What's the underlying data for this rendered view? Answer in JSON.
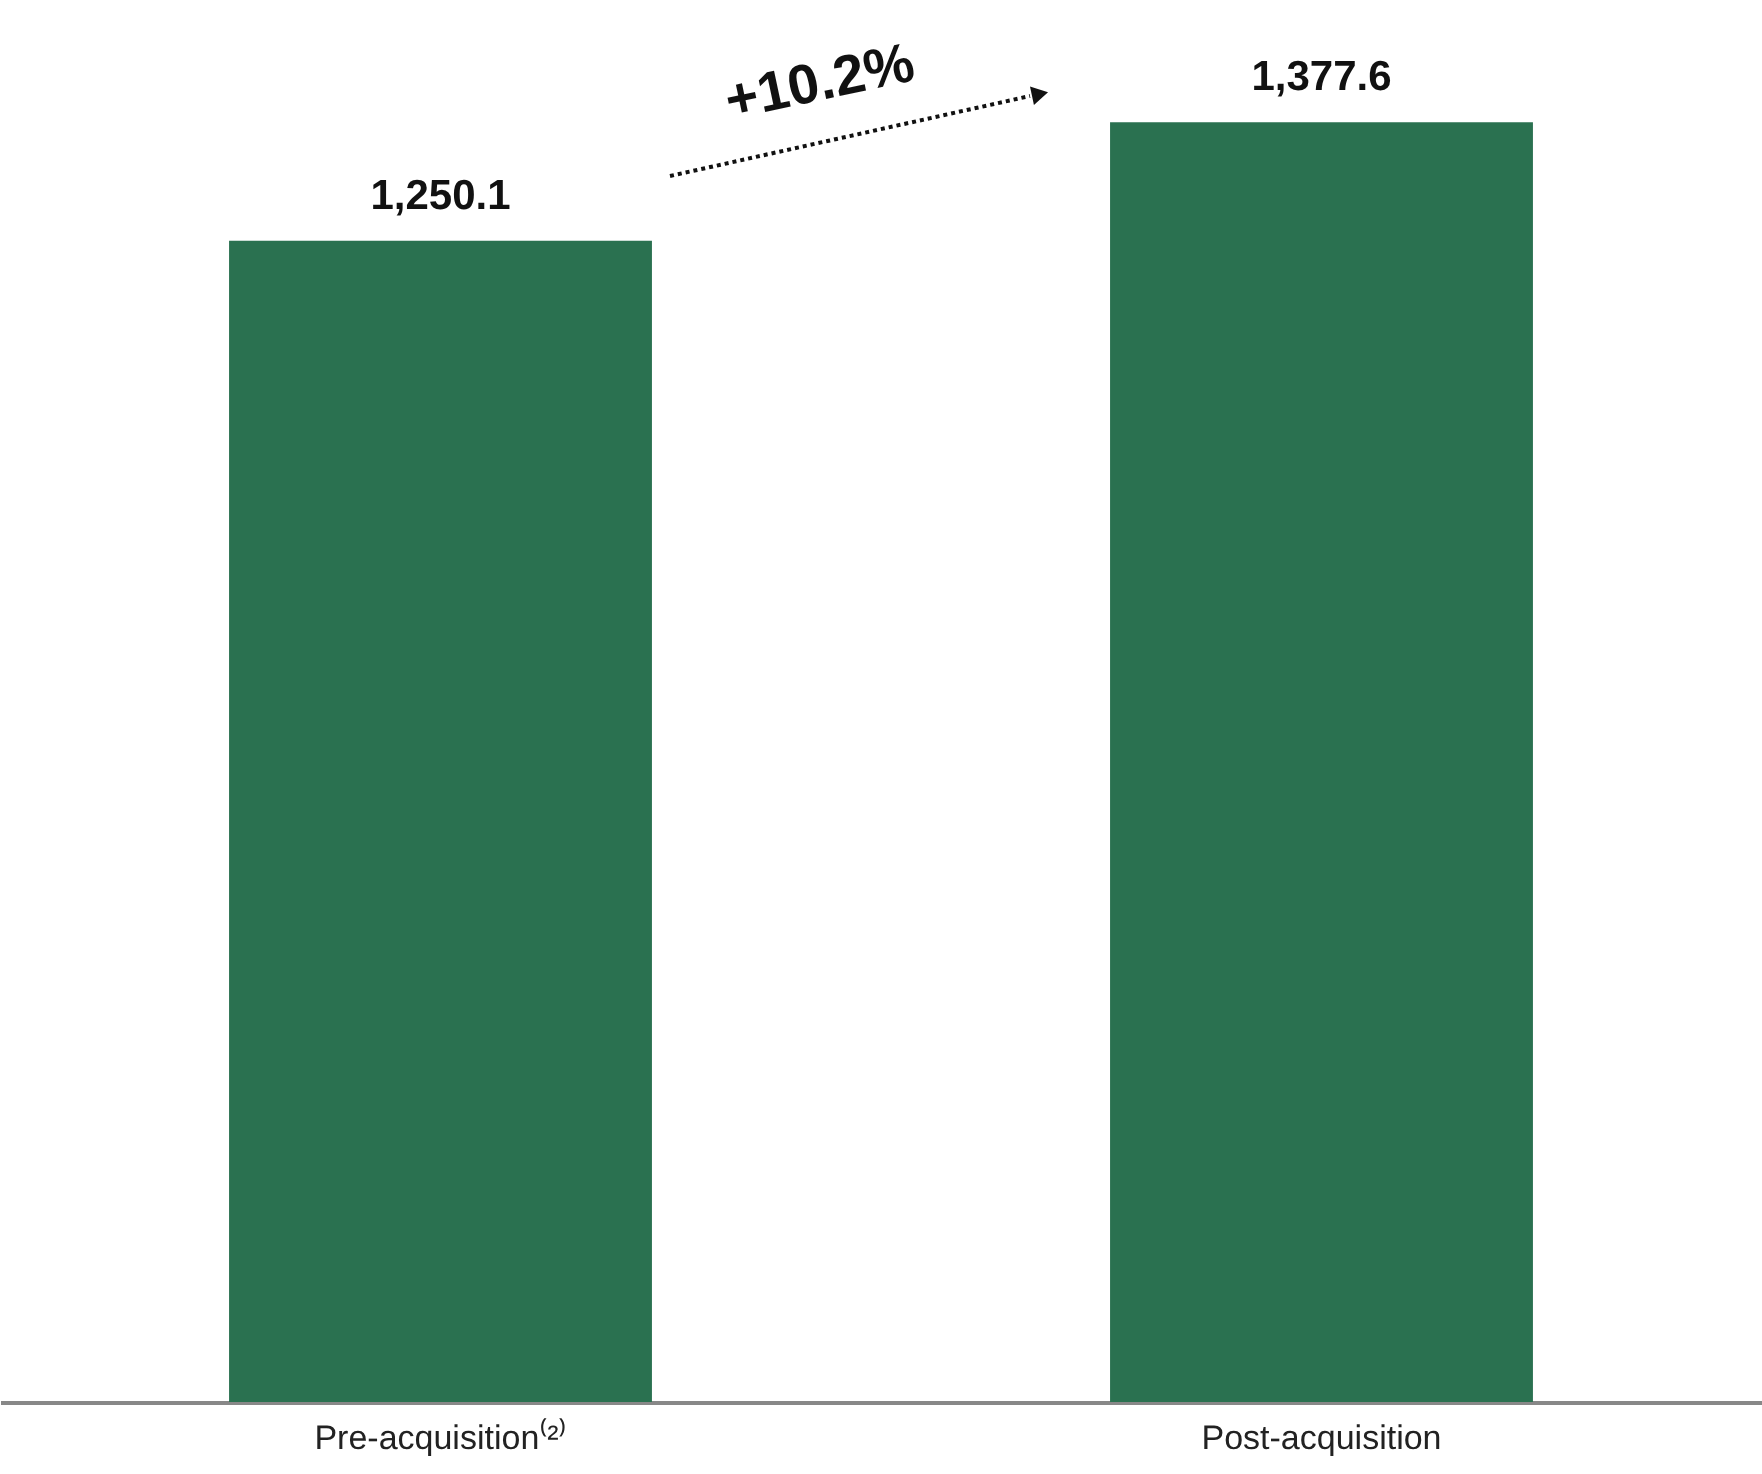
{
  "chart_data": {
    "type": "bar",
    "categories": [
      "Pre-acquisition⁽²⁾",
      "Post-acquisition"
    ],
    "values": [
      1250.1,
      1377.6
    ],
    "color": "#2a7150",
    "value_labels": [
      "1,250.1",
      "1,377.6"
    ],
    "grid": false,
    "annotations": [
      "+10.2%"
    ]
  }
}
